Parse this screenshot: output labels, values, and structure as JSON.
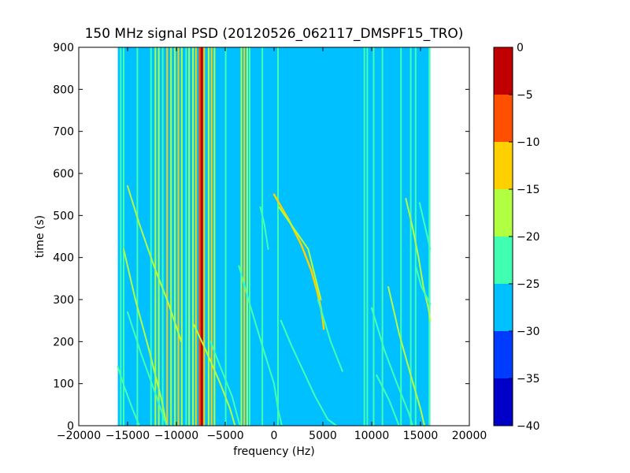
{
  "chart_data": {
    "type": "heatmap",
    "title": "150 MHz signal PSD (20120526_062117_DMSPF15_TRO)",
    "xlabel": "frequency (Hz)",
    "ylabel": "time (s)",
    "xlim": [
      -20000,
      20000
    ],
    "ylim": [
      0,
      900
    ],
    "xticks": [
      {
        "value": -20000,
        "label": "−20000"
      },
      {
        "value": -15000,
        "label": "−15000"
      },
      {
        "value": -10000,
        "label": "−10000"
      },
      {
        "value": -5000,
        "label": "−5000"
      },
      {
        "value": 0,
        "label": "0"
      },
      {
        "value": 5000,
        "label": "5000"
      },
      {
        "value": 10000,
        "label": "10000"
      },
      {
        "value": 15000,
        "label": "15000"
      },
      {
        "value": 20000,
        "label": "20000"
      }
    ],
    "yticks": [
      0,
      100,
      200,
      300,
      400,
      500,
      600,
      700,
      800,
      900
    ],
    "data_extent": {
      "freq": [
        -16000,
        16000
      ],
      "time": [
        0,
        900
      ]
    },
    "background_level": -27,
    "colorbar": {
      "range": [
        -40,
        0
      ],
      "boundaries": [
        -40,
        -35,
        -30,
        -25,
        -20,
        -15,
        -10,
        -5,
        0
      ],
      "ticks": [
        {
          "value": 0,
          "label": "0"
        },
        {
          "value": -5,
          "label": "−5"
        },
        {
          "value": -10,
          "label": "−10"
        },
        {
          "value": -15,
          "label": "−15"
        },
        {
          "value": -20,
          "label": "−20"
        },
        {
          "value": -25,
          "label": "−25"
        },
        {
          "value": -30,
          "label": "−30"
        },
        {
          "value": -35,
          "label": "−35"
        },
        {
          "value": -40,
          "label": "−40"
        }
      ],
      "colors": [
        "#0000c8",
        "#003cff",
        "#00c0ff",
        "#40ffb0",
        "#b0ff40",
        "#ffd000",
        "#ff5000",
        "#c00000"
      ]
    },
    "vertical_lines": [
      {
        "freq": -15700,
        "level": -22
      },
      {
        "freq": -15400,
        "level": -24
      },
      {
        "freq": -14000,
        "level": -25
      },
      {
        "freq": -12600,
        "level": -24
      },
      {
        "freq": -12150,
        "level": -20
      },
      {
        "freq": -11800,
        "level": -18
      },
      {
        "freq": -11400,
        "level": -22
      },
      {
        "freq": -10950,
        "level": -15
      },
      {
        "freq": -10550,
        "level": -20
      },
      {
        "freq": -10150,
        "level": -16
      },
      {
        "freq": -9800,
        "level": -13
      },
      {
        "freq": -9450,
        "level": -18
      },
      {
        "freq": -9000,
        "level": -21
      },
      {
        "freq": -8700,
        "level": -20
      },
      {
        "freq": -8300,
        "level": -17
      },
      {
        "freq": -8000,
        "level": -12
      },
      {
        "freq": -7600,
        "level": -8
      },
      {
        "freq": -7400,
        "level": -2
      },
      {
        "freq": -7150,
        "level": -14
      },
      {
        "freq": -6700,
        "level": -18
      },
      {
        "freq": -6400,
        "level": -13
      },
      {
        "freq": -6100,
        "level": -20
      },
      {
        "freq": -4950,
        "level": -24
      },
      {
        "freq": -3350,
        "level": -18
      },
      {
        "freq": -3050,
        "level": -15
      },
      {
        "freq": -2750,
        "level": -20
      },
      {
        "freq": -2500,
        "level": -23
      },
      {
        "freq": -1200,
        "level": -24
      },
      {
        "freq": 400,
        "level": -21
      },
      {
        "freq": 9250,
        "level": -23
      },
      {
        "freq": 9550,
        "level": -22
      },
      {
        "freq": 10200,
        "level": -24
      },
      {
        "freq": 11100,
        "level": -24
      },
      {
        "freq": 13000,
        "level": -22
      },
      {
        "freq": 14000,
        "level": -23
      },
      {
        "freq": 14500,
        "level": -22
      },
      {
        "freq": 15900,
        "level": -23
      }
    ],
    "curves": [
      {
        "level": -14,
        "points": [
          [
            0,
            550
          ],
          [
            1500,
            490
          ],
          [
            2800,
            430
          ],
          [
            3800,
            370
          ],
          [
            4400,
            320
          ],
          [
            4800,
            280
          ],
          [
            5000,
            250
          ],
          [
            5100,
            230
          ]
        ]
      },
      {
        "level": -20,
        "points": [
          [
            500,
            520
          ],
          [
            3500,
            420
          ],
          [
            4800,
            300
          ]
        ]
      },
      {
        "level": -19,
        "points": [
          [
            -15400,
            420
          ],
          [
            -14200,
            300
          ],
          [
            -12800,
            180
          ],
          [
            -11500,
            60
          ],
          [
            -11000,
            0
          ]
        ]
      },
      {
        "level": -20,
        "points": [
          [
            -15000,
            570
          ],
          [
            -13800,
            480
          ],
          [
            -12300,
            380
          ],
          [
            -10800,
            290
          ],
          [
            -9500,
            200
          ]
        ]
      },
      {
        "level": -21,
        "points": [
          [
            -16000,
            140
          ],
          [
            -15300,
            90
          ],
          [
            -14500,
            40
          ],
          [
            -13800,
            0
          ]
        ]
      },
      {
        "level": -21,
        "points": [
          [
            -15000,
            270
          ],
          [
            -13600,
            170
          ],
          [
            -12200,
            80
          ],
          [
            -11000,
            0
          ]
        ]
      },
      {
        "level": -20,
        "points": [
          [
            -8200,
            240
          ],
          [
            -7000,
            180
          ],
          [
            -5500,
            100
          ],
          [
            -4500,
            40
          ],
          [
            -4000,
            0
          ]
        ]
      },
      {
        "level": -22,
        "points": [
          [
            -6500,
            200
          ],
          [
            -5500,
            140
          ],
          [
            -4300,
            70
          ],
          [
            -3500,
            0
          ]
        ]
      },
      {
        "level": -22,
        "points": [
          [
            -3600,
            380
          ],
          [
            -2500,
            290
          ],
          [
            -1200,
            190
          ],
          [
            0,
            100
          ],
          [
            400,
            40
          ],
          [
            800,
            0
          ]
        ]
      },
      {
        "level": -22,
        "points": [
          [
            700,
            250
          ],
          [
            1800,
            190
          ],
          [
            3000,
            130
          ],
          [
            4200,
            70
          ],
          [
            5500,
            15
          ],
          [
            6400,
            0
          ]
        ]
      },
      {
        "level": -22,
        "points": [
          [
            4500,
            300
          ],
          [
            5800,
            200
          ],
          [
            7000,
            130
          ]
        ]
      },
      {
        "level": -22,
        "points": [
          [
            10000,
            280
          ],
          [
            11300,
            180
          ],
          [
            12600,
            100
          ],
          [
            13800,
            30
          ],
          [
            14200,
            0
          ]
        ]
      },
      {
        "level": -22,
        "points": [
          [
            10500,
            120
          ],
          [
            11800,
            60
          ],
          [
            12800,
            0
          ]
        ]
      },
      {
        "level": -20,
        "points": [
          [
            13500,
            540
          ],
          [
            14200,
            470
          ],
          [
            14800,
            400
          ],
          [
            15300,
            330
          ],
          [
            15800,
            280
          ],
          [
            16000,
            250
          ]
        ]
      },
      {
        "level": -20,
        "points": [
          [
            11700,
            330
          ],
          [
            12800,
            220
          ],
          [
            14000,
            120
          ],
          [
            15000,
            40
          ],
          [
            15400,
            0
          ]
        ]
      },
      {
        "level": -21,
        "points": [
          [
            14900,
            530
          ],
          [
            15400,
            480
          ],
          [
            16000,
            420
          ]
        ]
      },
      {
        "level": -22,
        "points": [
          [
            14500,
            380
          ],
          [
            15100,
            330
          ],
          [
            16000,
            290
          ]
        ]
      },
      {
        "level": -22,
        "points": [
          [
            -1400,
            520
          ],
          [
            -1000,
            480
          ],
          [
            -600,
            420
          ]
        ]
      }
    ]
  }
}
